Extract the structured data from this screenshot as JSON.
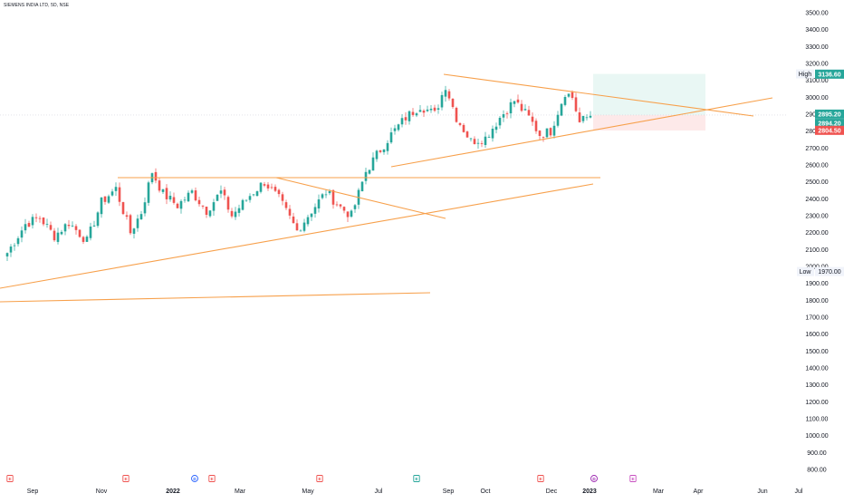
{
  "symbol_title": "SIEMENS INDIA LTD, 5D, NSE",
  "colors": {
    "up": "#26a69a",
    "down": "#ef5350",
    "trendline": "#f7a04b",
    "axis_text": "#131722",
    "gain_zone": "#e0f4ef",
    "loss_zone": "#fde3e3"
  },
  "markers": {
    "high_label": "High",
    "low_label": "Low",
    "high_value": "3138.50",
    "low_value": "1970.00"
  },
  "price_tags": [
    {
      "value": "3136.60",
      "color": "#26a69a"
    },
    {
      "value": "2895.20",
      "color": "#26a69a"
    },
    {
      "value": "2894.20",
      "color": "#26a69a"
    },
    {
      "value": "2804.50",
      "color": "#ef5350"
    }
  ],
  "event_markers": [
    {
      "glyph": "E",
      "color": "#ef5350"
    },
    {
      "glyph": "E",
      "color": "#ef5350"
    },
    {
      "glyph": "D",
      "color": "#2962ff"
    },
    {
      "glyph": "E",
      "color": "#ef5350"
    },
    {
      "glyph": "E",
      "color": "#ef5350"
    },
    {
      "glyph": "E",
      "color": "#26a69a"
    },
    {
      "glyph": "E",
      "color": "#ef5350"
    },
    {
      "glyph": "D",
      "color": "#9c27b0"
    },
    {
      "glyph": "E",
      "color": "#c850c0"
    }
  ],
  "chart_data": {
    "type": "candlestick",
    "y_tick_labels": [
      "3500.00",
      "3400.00",
      "3300.00",
      "3200.00",
      "3100.00",
      "3000.00",
      "2900.00",
      "2800.00",
      "2700.00",
      "2600.00",
      "2500.00",
      "2400.00",
      "2300.00",
      "2200.00",
      "2100.00",
      "2000.00",
      "1900.00",
      "1800.00",
      "1700.00",
      "1600.00",
      "1500.00",
      "1400.00",
      "1300.00",
      "1200.00",
      "1100.00",
      "1000.00",
      "900.00",
      "800.00"
    ],
    "y_ticks": [
      3500,
      3400,
      3300,
      3200,
      3100,
      3000,
      2900,
      2800,
      2700,
      2600,
      2500,
      2400,
      2300,
      2200,
      2100,
      2000,
      1900,
      1800,
      1700,
      1600,
      1500,
      1400,
      1300,
      1200,
      1100,
      1000,
      900,
      800
    ],
    "ylim": [
      770,
      3560
    ],
    "x_tick_labels": [
      "Sep",
      "Nov",
      "2022",
      "Mar",
      "May",
      "Jul",
      "Sep",
      "Oct",
      "Dec",
      "2023",
      "Mar",
      "Apr",
      "Jun",
      "Jul"
    ],
    "x_tick_bold": [
      false,
      false,
      true,
      false,
      false,
      false,
      false,
      false,
      false,
      true,
      false,
      false,
      false,
      false
    ],
    "candle_path": [
      {
        "s": 0,
        "v": 2080
      },
      {
        "s": 5,
        "v": 2250
      },
      {
        "s": 9,
        "v": 2290
      },
      {
        "s": 13,
        "v": 2180
      },
      {
        "s": 17,
        "v": 2260
      },
      {
        "s": 22,
        "v": 2150
      },
      {
        "s": 26,
        "v": 2380
      },
      {
        "s": 30,
        "v": 2460
      },
      {
        "s": 34,
        "v": 2200
      },
      {
        "s": 37,
        "v": 2320
      },
      {
        "s": 40,
        "v": 2560
      },
      {
        "s": 43,
        "v": 2430
      },
      {
        "s": 47,
        "v": 2360
      },
      {
        "s": 51,
        "v": 2440
      },
      {
        "s": 55,
        "v": 2330
      },
      {
        "s": 59,
        "v": 2440
      },
      {
        "s": 62,
        "v": 2300
      },
      {
        "s": 67,
        "v": 2420
      },
      {
        "s": 71,
        "v": 2500
      },
      {
        "s": 75,
        "v": 2400
      },
      {
        "s": 80,
        "v": 2210
      },
      {
        "s": 84,
        "v": 2330
      },
      {
        "s": 88,
        "v": 2440
      },
      {
        "s": 92,
        "v": 2350
      },
      {
        "s": 95,
        "v": 2300
      },
      {
        "s": 99,
        "v": 2560
      },
      {
        "s": 102,
        "v": 2660
      },
      {
        "s": 106,
        "v": 2780
      },
      {
        "s": 110,
        "v": 2880
      },
      {
        "s": 114,
        "v": 2950
      },
      {
        "s": 118,
        "v": 2900
      },
      {
        "s": 121,
        "v": 3070
      },
      {
        "s": 124,
        "v": 2880
      },
      {
        "s": 128,
        "v": 2740
      },
      {
        "s": 132,
        "v": 2760
      },
      {
        "s": 136,
        "v": 2880
      },
      {
        "s": 140,
        "v": 2980
      },
      {
        "s": 144,
        "v": 2880
      },
      {
        "s": 147,
        "v": 2780
      },
      {
        "s": 150,
        "v": 2800
      },
      {
        "s": 154,
        "v": 3030
      },
      {
        "s": 156,
        "v": 3000
      },
      {
        "s": 158,
        "v": 2850
      },
      {
        "s": 161,
        "v": 2895
      }
    ],
    "x_range": [
      0,
      225
    ]
  }
}
